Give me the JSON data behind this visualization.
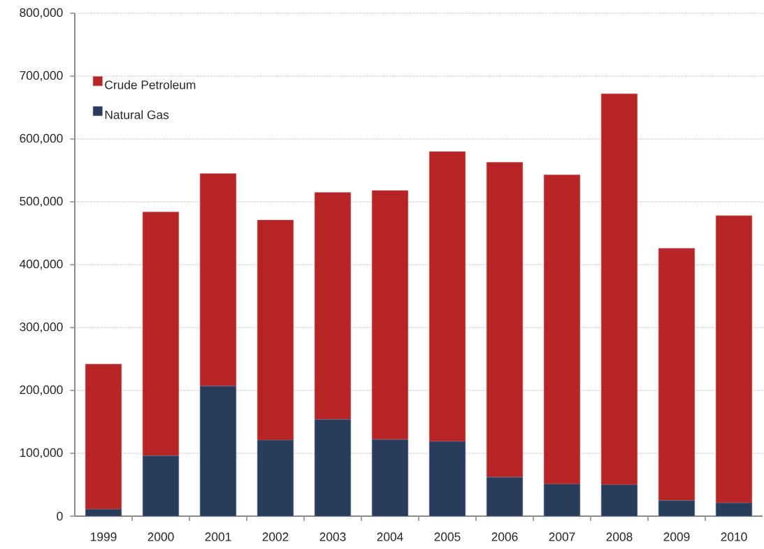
{
  "chart_data": {
    "type": "bar",
    "stacked": true,
    "categories": [
      "1999",
      "2000",
      "2001",
      "2002",
      "2003",
      "2004",
      "2005",
      "2006",
      "2007",
      "2008",
      "2009",
      "2010"
    ],
    "series": [
      {
        "name": "Natural Gas",
        "color": "#2a3c5c",
        "values": [
          11000,
          96000,
          207000,
          121000,
          154000,
          122000,
          119000,
          62000,
          51000,
          50000,
          25000,
          21000
        ]
      },
      {
        "name": "Crude Petroleum",
        "color": "#b72426",
        "values": [
          231000,
          388000,
          338000,
          350000,
          361000,
          396000,
          461000,
          501000,
          492000,
          622000,
          401000,
          457000
        ]
      }
    ],
    "ylim": [
      0,
      800000
    ],
    "yticks": [
      0,
      {
        "value": 100000,
        "label": "100,000"
      },
      {
        "value": 200000,
        "label": "200,000"
      },
      {
        "value": 300000,
        "label": "300,000"
      },
      {
        "value": 400000,
        "label": "400,000"
      },
      {
        "value": 500000,
        "label": "500,000"
      },
      {
        "value": 600000,
        "label": "600,000"
      },
      {
        "value": 700000,
        "label": "700,000"
      },
      {
        "value": 800000,
        "label": "800,000"
      }
    ],
    "grid": "y",
    "legend": "top left"
  }
}
